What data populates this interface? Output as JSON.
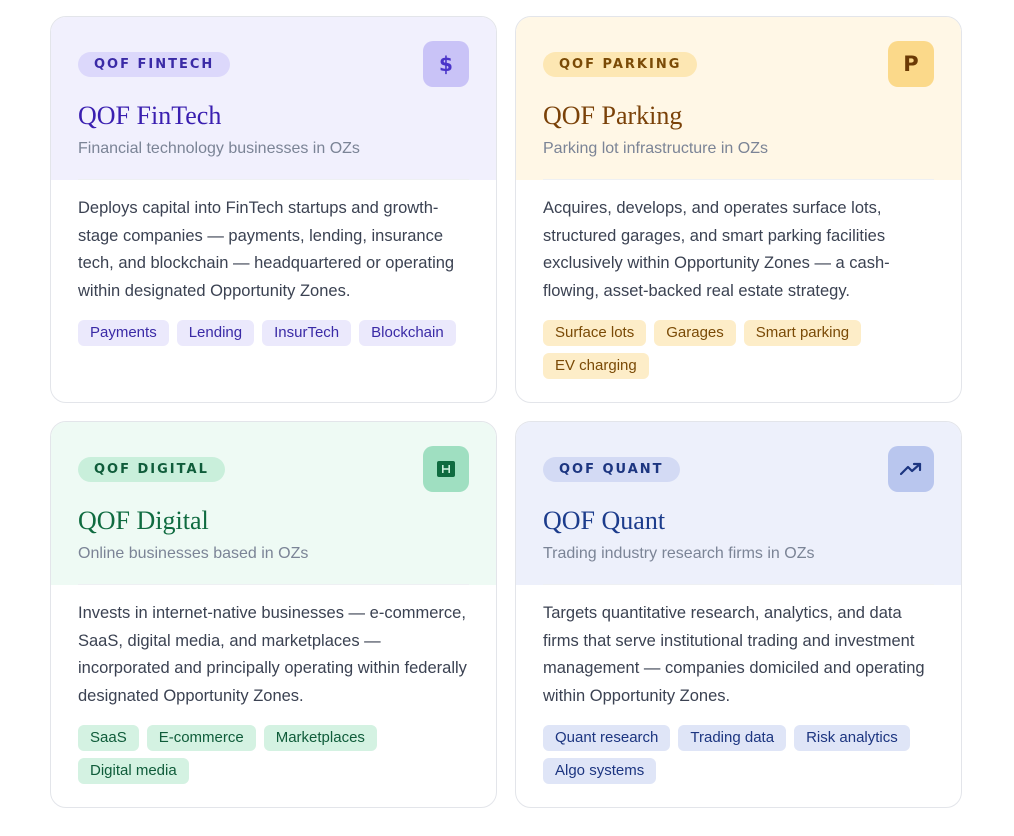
{
  "funds": [
    {
      "badge": "QOF FINTECH",
      "icon": "dollar-icon",
      "icon_glyph": "$",
      "title": "QOF FinTech",
      "subtitle": "Financial technology businesses in OZs",
      "description": "Deploys capital into FinTech startups and growth-stage companies — payments, lending, insurance tech, and blockchain — headquartered or operating within designated Opportunity Zones.",
      "tags": [
        "Payments",
        "Lending",
        "InsurTech",
        "Blockchain"
      ],
      "accent": "#3a1fb0"
    },
    {
      "badge": "QOF PARKING",
      "icon": "parking-icon",
      "icon_glyph": "P",
      "title": "QOF Parking",
      "subtitle": "Parking lot infrastructure in OZs",
      "description": "Acquires, develops, and operates surface lots, structured garages, and smart parking facilities exclusively within Opportunity Zones — a cash-flowing, asset-backed real estate strategy.",
      "tags": [
        "Surface lots",
        "Garages",
        "Smart parking",
        "EV charging"
      ],
      "accent": "#7a4108"
    },
    {
      "badge": "QOF DIGITAL",
      "icon": "browser-window-icon",
      "icon_glyph": "",
      "title": "QOF Digital",
      "subtitle": "Online businesses based in OZs",
      "description": "Invests in internet-native businesses — e-commerce, SaaS, digital media, and marketplaces — incorporated and principally operating within federally designated Opportunity Zones.",
      "tags": [
        "SaaS",
        "E-commerce",
        "Marketplaces",
        "Digital media"
      ],
      "accent": "#0f6b40"
    },
    {
      "badge": "QOF QUANT",
      "icon": "trending-up-icon",
      "icon_glyph": "",
      "title": "QOF Quant",
      "subtitle": "Trading industry research firms in OZs",
      "description": "Targets quantitative research, analytics, and data firms that serve institutional trading and investment management — companies domiciled and operating within Opportunity Zones.",
      "tags": [
        "Quant research",
        "Trading data",
        "Risk analytics",
        "Algo systems"
      ],
      "accent": "#1c3c8c"
    }
  ]
}
